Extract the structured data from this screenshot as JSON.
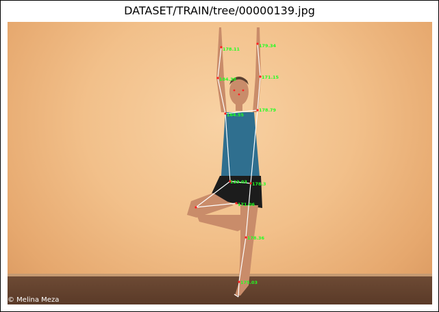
{
  "title": "DATASET/TRAIN/tree/00000139.jpg",
  "photo_credit": "© Melina Meza",
  "keypoint_labels": [
    "178.11",
    "179.34",
    "184.38",
    "171.15",
    "164.55",
    "178.79",
    "123.03",
    "178.3",
    "171.06",
    "178.36",
    "175.03"
  ],
  "colors": {
    "keypoint_label": "#22ff22",
    "keypoint_dot": "#ff2020",
    "skeleton": "#ffffff"
  }
}
